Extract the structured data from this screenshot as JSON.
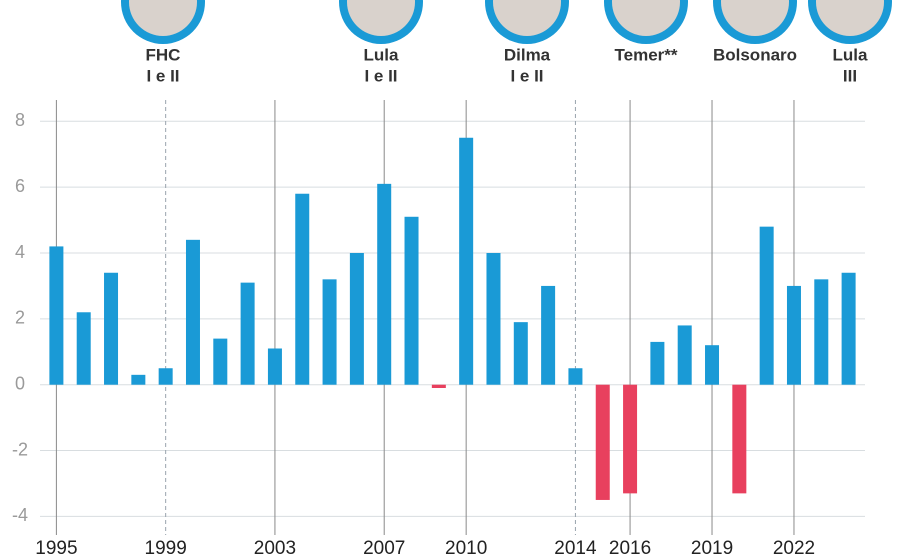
{
  "chart_data": {
    "type": "bar",
    "x": [
      1995,
      1996,
      1997,
      1998,
      1999,
      2000,
      2001,
      2002,
      2003,
      2004,
      2005,
      2006,
      2007,
      2008,
      2009,
      2010,
      2011,
      2012,
      2013,
      2014,
      2015,
      2016,
      2017,
      2018,
      2019,
      2020,
      2021,
      2022,
      2023,
      2024
    ],
    "values": [
      4.2,
      2.2,
      3.4,
      0.3,
      0.5,
      4.4,
      1.4,
      3.1,
      1.1,
      5.8,
      3.2,
      4.0,
      6.1,
      5.1,
      -0.1,
      7.5,
      4.0,
      1.9,
      3.0,
      0.5,
      -3.5,
      -3.3,
      1.3,
      1.8,
      1.2,
      -3.3,
      4.8,
      3.0,
      3.2,
      3.4
    ],
    "color": "#1a9ad6",
    "negative_color": "#e8405e",
    "xlim": [
      1994.4,
      2024.6
    ],
    "xticks": [
      1995,
      1999,
      2003,
      2007,
      2010,
      2014,
      2016,
      2019,
      2022
    ],
    "dashed_xticks": [
      1999,
      2014
    ],
    "ylim": [
      -4.2,
      8.1
    ],
    "yticks": [
      -4,
      -2,
      0,
      2,
      4,
      6,
      8
    ],
    "grid": true,
    "presidents": [
      {
        "name": "FHC",
        "term": "I e II"
      },
      {
        "name": "Lula",
        "term": "I e II"
      },
      {
        "name": "Dilma",
        "term": "I e II"
      },
      {
        "name": "Temer**"
      },
      {
        "name": "Bolsonaro"
      },
      {
        "name": "Lula",
        "term": "III"
      }
    ]
  }
}
